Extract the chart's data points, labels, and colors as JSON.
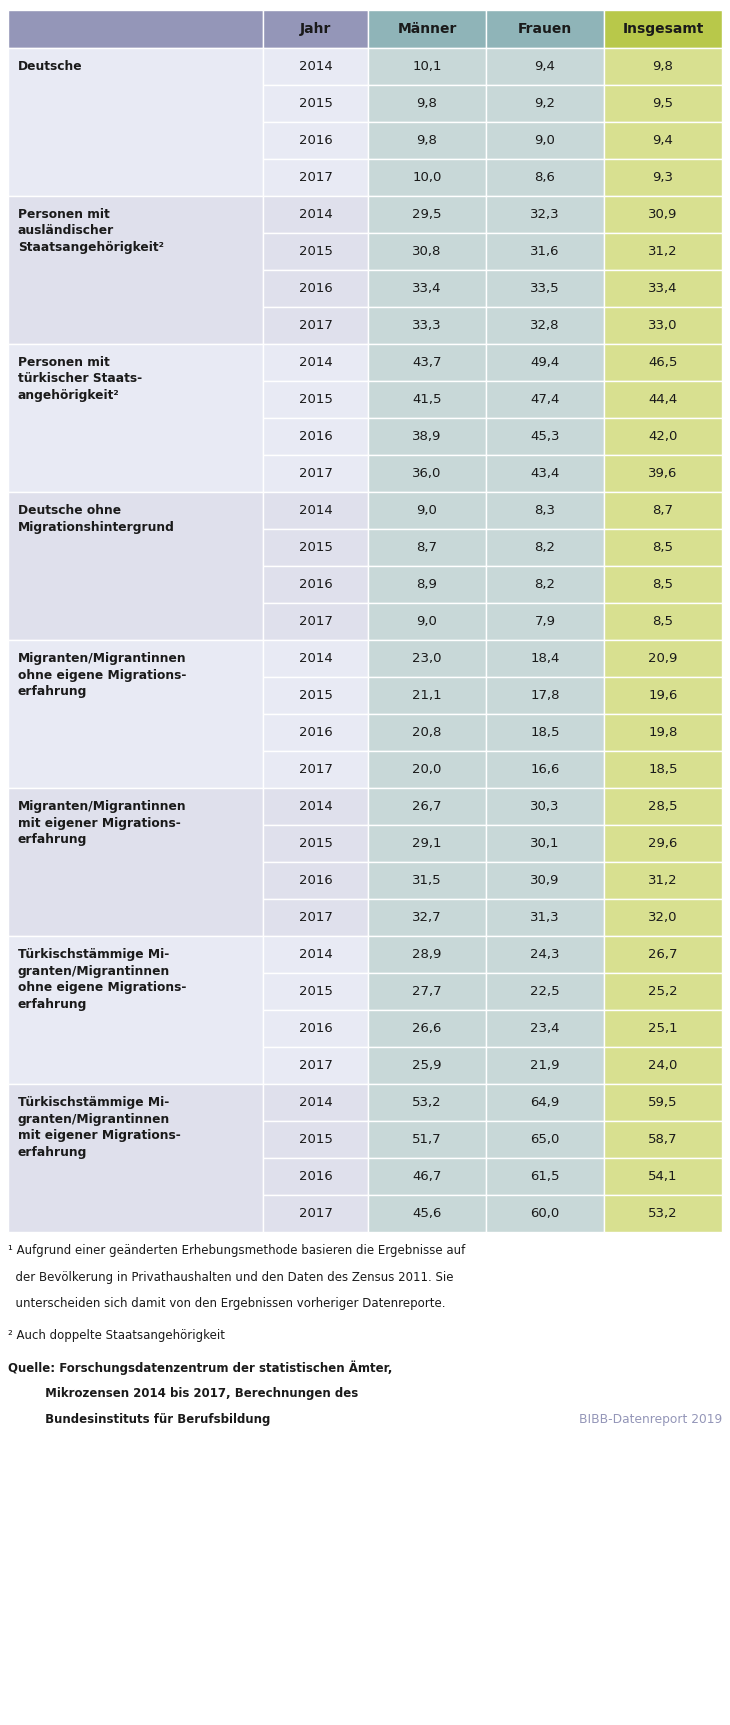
{
  "header": [
    "Jahr",
    "Männer",
    "Frauen",
    "Insgesamt"
  ],
  "header_col0_color": "#9496b8",
  "header_col1_color": "#9496b8",
  "header_col2_color": "#8fb4b8",
  "header_col3_color": "#8fb4b8",
  "header_col4_color": "#b8c84a",
  "col_männer_bg": "#c8d8d8",
  "col_frauen_bg": "#c8d8d8",
  "col_insgesamt_bg": "#d8e090",
  "group_bg_colors": [
    "#e8eaf4",
    "#dfe0ec"
  ],
  "groups": [
    {
      "label": "Deutsche",
      "rows": [
        [
          "2014",
          "10,1",
          "9,4",
          "9,8"
        ],
        [
          "2015",
          "9,8",
          "9,2",
          "9,5"
        ],
        [
          "2016",
          "9,8",
          "9,0",
          "9,4"
        ],
        [
          "2017",
          "10,0",
          "8,6",
          "9,3"
        ]
      ]
    },
    {
      "label": "Personen mit\nausländischer\nStaatsangehörigkeit²",
      "rows": [
        [
          "2014",
          "29,5",
          "32,3",
          "30,9"
        ],
        [
          "2015",
          "30,8",
          "31,6",
          "31,2"
        ],
        [
          "2016",
          "33,4",
          "33,5",
          "33,4"
        ],
        [
          "2017",
          "33,3",
          "32,8",
          "33,0"
        ]
      ]
    },
    {
      "label": "Personen mit\ntürkischer Staats-\nangehörigkeit²",
      "rows": [
        [
          "2014",
          "43,7",
          "49,4",
          "46,5"
        ],
        [
          "2015",
          "41,5",
          "47,4",
          "44,4"
        ],
        [
          "2016",
          "38,9",
          "45,3",
          "42,0"
        ],
        [
          "2017",
          "36,0",
          "43,4",
          "39,6"
        ]
      ]
    },
    {
      "label": "Deutsche ohne\nMigrationshintergrund",
      "rows": [
        [
          "2014",
          "9,0",
          "8,3",
          "8,7"
        ],
        [
          "2015",
          "8,7",
          "8,2",
          "8,5"
        ],
        [
          "2016",
          "8,9",
          "8,2",
          "8,5"
        ],
        [
          "2017",
          "9,0",
          "7,9",
          "8,5"
        ]
      ]
    },
    {
      "label": "Migranten/Migrantinnen\nohne eigene Migrations-\nerfahrung",
      "rows": [
        [
          "2014",
          "23,0",
          "18,4",
          "20,9"
        ],
        [
          "2015",
          "21,1",
          "17,8",
          "19,6"
        ],
        [
          "2016",
          "20,8",
          "18,5",
          "19,8"
        ],
        [
          "2017",
          "20,0",
          "16,6",
          "18,5"
        ]
      ]
    },
    {
      "label": "Migranten/Migrantinnen\nmit eigener Migrations-\nerfahrung",
      "rows": [
        [
          "2014",
          "26,7",
          "30,3",
          "28,5"
        ],
        [
          "2015",
          "29,1",
          "30,1",
          "29,6"
        ],
        [
          "2016",
          "31,5",
          "30,9",
          "31,2"
        ],
        [
          "2017",
          "32,7",
          "31,3",
          "32,0"
        ]
      ]
    },
    {
      "label": "Türkischstämmige Mi-\ngranten/Migrantinnen\nohne eigene Migrations-\nerfahrung",
      "rows": [
        [
          "2014",
          "28,9",
          "24,3",
          "26,7"
        ],
        [
          "2015",
          "27,7",
          "22,5",
          "25,2"
        ],
        [
          "2016",
          "26,6",
          "23,4",
          "25,1"
        ],
        [
          "2017",
          "25,9",
          "21,9",
          "24,0"
        ]
      ]
    },
    {
      "label": "Türkischstämmige Mi-\ngranten/Migrantinnen\nmit eigener Migrations-\nerfahrung",
      "rows": [
        [
          "2014",
          "53,2",
          "64,9",
          "59,5"
        ],
        [
          "2015",
          "51,7",
          "65,0",
          "58,7"
        ],
        [
          "2016",
          "46,7",
          "61,5",
          "54,1"
        ],
        [
          "2017",
          "45,6",
          "60,0",
          "53,2"
        ]
      ]
    }
  ],
  "footnote1_line1": "¹ Aufgrund einer geänderten Erhebungsmethode basieren die Ergebnisse auf",
  "footnote1_line2": "  der Bevölkerung in Privathaushalten und den Daten des Zensus 2011. Sie",
  "footnote1_line3": "  unterscheiden sich damit von den Ergebnissen vorheriger Datenreporte.",
  "footnote2": "² Auch doppelte Staatsangehörigkeit",
  "source_line1": "Quelle: Forschungsdatenzentrum der statistischen Ämter,",
  "source_line2": "         Mikrozensen 2014 bis 2017, Berechnungen des",
  "source_line3": "         Bundesinstituts für Berufsbildung",
  "bibb": "BIBB-Datenreport 2019",
  "figsize": [
    7.3,
    17.25
  ],
  "dpi": 100
}
